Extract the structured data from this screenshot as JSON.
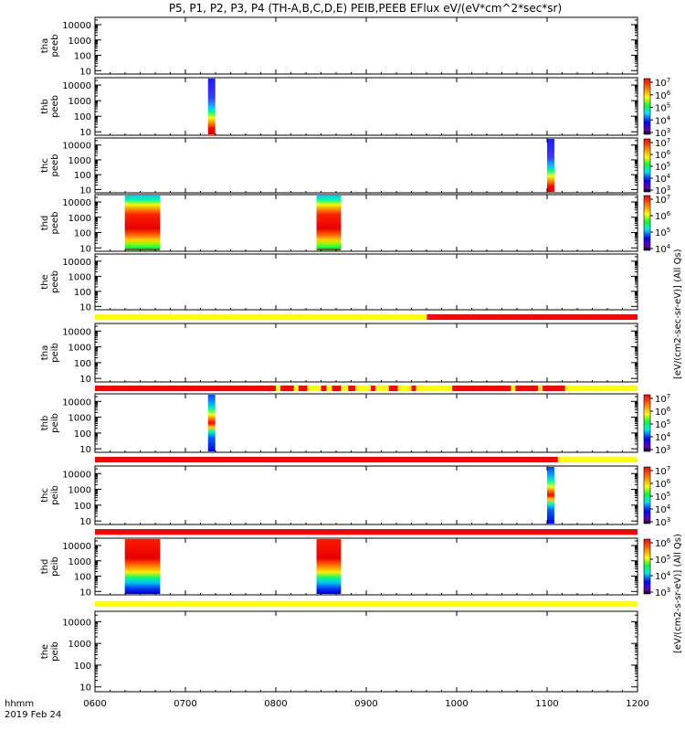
{
  "title": "P5, P1, P2, P3, P4 (TH-A,B,C,D,E) PEIB,PEEB EFlux eV/(eV*cm^2*sec*sr)",
  "x_axis": {
    "ticks": [
      "0600",
      "0700",
      "0800",
      "0900",
      "1000",
      "1100",
      "1200"
    ],
    "unit_label": "hhmm",
    "date_label": "2019 Feb 24"
  },
  "colorbars": {
    "electron_label": "[eV/(cm2-sec-sr-eV)] (All Qs)",
    "ion_label": "[eV/(cm2-s-sr-eV)] (All Qs)"
  },
  "colors": {
    "quality_yellow": "#ffff00",
    "quality_red": "#ff0000",
    "axis": "#000000"
  },
  "chart_data": {
    "type": "heatmap",
    "x_range_hours": [
      6,
      12
    ],
    "y_scale": "log",
    "y_ticks": [
      "10",
      "100",
      "1000",
      "10000"
    ],
    "panels": [
      {
        "name": "tha peeb",
        "label": [
          "tha",
          "peeb"
        ],
        "ylim": [
          6,
          30000
        ],
        "colorbar": null,
        "bursts": []
      },
      {
        "name": "thb peeb",
        "label": [
          "thb",
          "peeb"
        ],
        "ylim": [
          6,
          30000
        ],
        "colorbar": {
          "ticks": [
            "10^3",
            "10^4",
            "10^5",
            "10^6",
            "10^7"
          ]
        },
        "bursts": [
          {
            "start": 7.25,
            "end": 7.33,
            "style": "electron"
          }
        ]
      },
      {
        "name": "thc peeb",
        "label": [
          "thc",
          "peeb"
        ],
        "ylim": [
          6,
          30000
        ],
        "colorbar": {
          "ticks": [
            "10^3",
            "10^4",
            "10^5",
            "10^6",
            "10^7"
          ]
        },
        "bursts": [
          {
            "start": 11.0,
            "end": 11.08,
            "style": "electron"
          }
        ]
      },
      {
        "name": "thd peeb",
        "label": [
          "thd",
          "peeb"
        ],
        "ylim": [
          6,
          30000
        ],
        "colorbar": {
          "ticks": [
            "10^4",
            "10^5",
            "10^6",
            "10^7"
          ]
        },
        "bursts": [
          {
            "start": 6.33,
            "end": 6.72,
            "style": "electron_wide"
          },
          {
            "start": 8.45,
            "end": 8.72,
            "style": "electron_wide"
          }
        ]
      },
      {
        "name": "the peeb",
        "label": [
          "the",
          "peeb"
        ],
        "ylim": [
          6,
          30000
        ],
        "colorbar": null,
        "bursts": []
      },
      {
        "name": "tha peib",
        "label": [
          "tha",
          "peib"
        ],
        "ylim": [
          6,
          30000
        ],
        "colorbar": null,
        "bursts": []
      },
      {
        "name": "thb peib",
        "label": [
          "thb",
          "peib"
        ],
        "ylim": [
          6,
          30000
        ],
        "colorbar": {
          "ticks": [
            "10^3",
            "10^4",
            "10^5",
            "10^6",
            "10^7"
          ]
        },
        "bursts": [
          {
            "start": 7.25,
            "end": 7.33,
            "style": "ion"
          }
        ]
      },
      {
        "name": "thc peib",
        "label": [
          "thc",
          "peib"
        ],
        "ylim": [
          6,
          30000
        ],
        "colorbar": {
          "ticks": [
            "10^3",
            "10^4",
            "10^5",
            "10^6",
            "10^7"
          ]
        },
        "bursts": [
          {
            "start": 11.0,
            "end": 11.08,
            "style": "ion"
          }
        ]
      },
      {
        "name": "thd peib",
        "label": [
          "thd",
          "peib"
        ],
        "ylim": [
          6,
          30000
        ],
        "colorbar": {
          "ticks": [
            "10^3",
            "10^4",
            "10^5",
            "10^6"
          ]
        },
        "bursts": [
          {
            "start": 6.33,
            "end": 6.72,
            "style": "ion_wide"
          },
          {
            "start": 8.45,
            "end": 8.72,
            "style": "ion_wide"
          }
        ]
      },
      {
        "name": "the peib",
        "label": [
          "the",
          "peib"
        ],
        "ylim": [
          6,
          30000
        ],
        "colorbar": null,
        "bursts": []
      }
    ],
    "quality_bars": [
      {
        "after_panel": 4,
        "segments": [
          {
            "start": 6.0,
            "end": 9.67,
            "color": "yellow"
          },
          {
            "start": 9.67,
            "end": 12.0,
            "color": "red"
          }
        ]
      },
      {
        "after_panel": 5,
        "segments": [
          {
            "start": 6.0,
            "end": 8.0,
            "color": "red"
          },
          {
            "start": 8.0,
            "end": 8.05,
            "color": "yellow"
          },
          {
            "start": 8.05,
            "end": 8.2,
            "color": "red"
          },
          {
            "start": 8.2,
            "end": 8.25,
            "color": "yellow"
          },
          {
            "start": 8.25,
            "end": 8.35,
            "color": "red"
          },
          {
            "start": 8.35,
            "end": 8.5,
            "color": "yellow"
          },
          {
            "start": 8.5,
            "end": 8.56,
            "color": "red"
          },
          {
            "start": 8.56,
            "end": 8.62,
            "color": "yellow"
          },
          {
            "start": 8.62,
            "end": 8.72,
            "color": "red"
          },
          {
            "start": 8.72,
            "end": 8.8,
            "color": "yellow"
          },
          {
            "start": 8.8,
            "end": 8.88,
            "color": "red"
          },
          {
            "start": 8.88,
            "end": 9.05,
            "color": "yellow"
          },
          {
            "start": 9.05,
            "end": 9.1,
            "color": "red"
          },
          {
            "start": 9.1,
            "end": 9.25,
            "color": "yellow"
          },
          {
            "start": 9.25,
            "end": 9.35,
            "color": "red"
          },
          {
            "start": 9.35,
            "end": 9.5,
            "color": "yellow"
          },
          {
            "start": 9.5,
            "end": 9.55,
            "color": "red"
          },
          {
            "start": 9.55,
            "end": 9.95,
            "color": "yellow"
          },
          {
            "start": 9.95,
            "end": 10.6,
            "color": "red"
          },
          {
            "start": 10.6,
            "end": 10.65,
            "color": "yellow"
          },
          {
            "start": 10.65,
            "end": 10.9,
            "color": "red"
          },
          {
            "start": 10.9,
            "end": 10.95,
            "color": "yellow"
          },
          {
            "start": 10.95,
            "end": 11.2,
            "color": "red"
          },
          {
            "start": 11.2,
            "end": 12.0,
            "color": "yellow"
          }
        ]
      },
      {
        "after_panel": 6,
        "segments": [
          {
            "start": 6.0,
            "end": 11.12,
            "color": "red"
          },
          {
            "start": 11.12,
            "end": 12.0,
            "color": "yellow"
          }
        ]
      },
      {
        "after_panel": 7,
        "segments": [
          {
            "start": 6.0,
            "end": 12.0,
            "color": "red"
          }
        ]
      },
      {
        "after_panel": 8,
        "segments": [
          {
            "start": 6.0,
            "end": 12.0,
            "color": "yellow"
          }
        ]
      }
    ]
  }
}
